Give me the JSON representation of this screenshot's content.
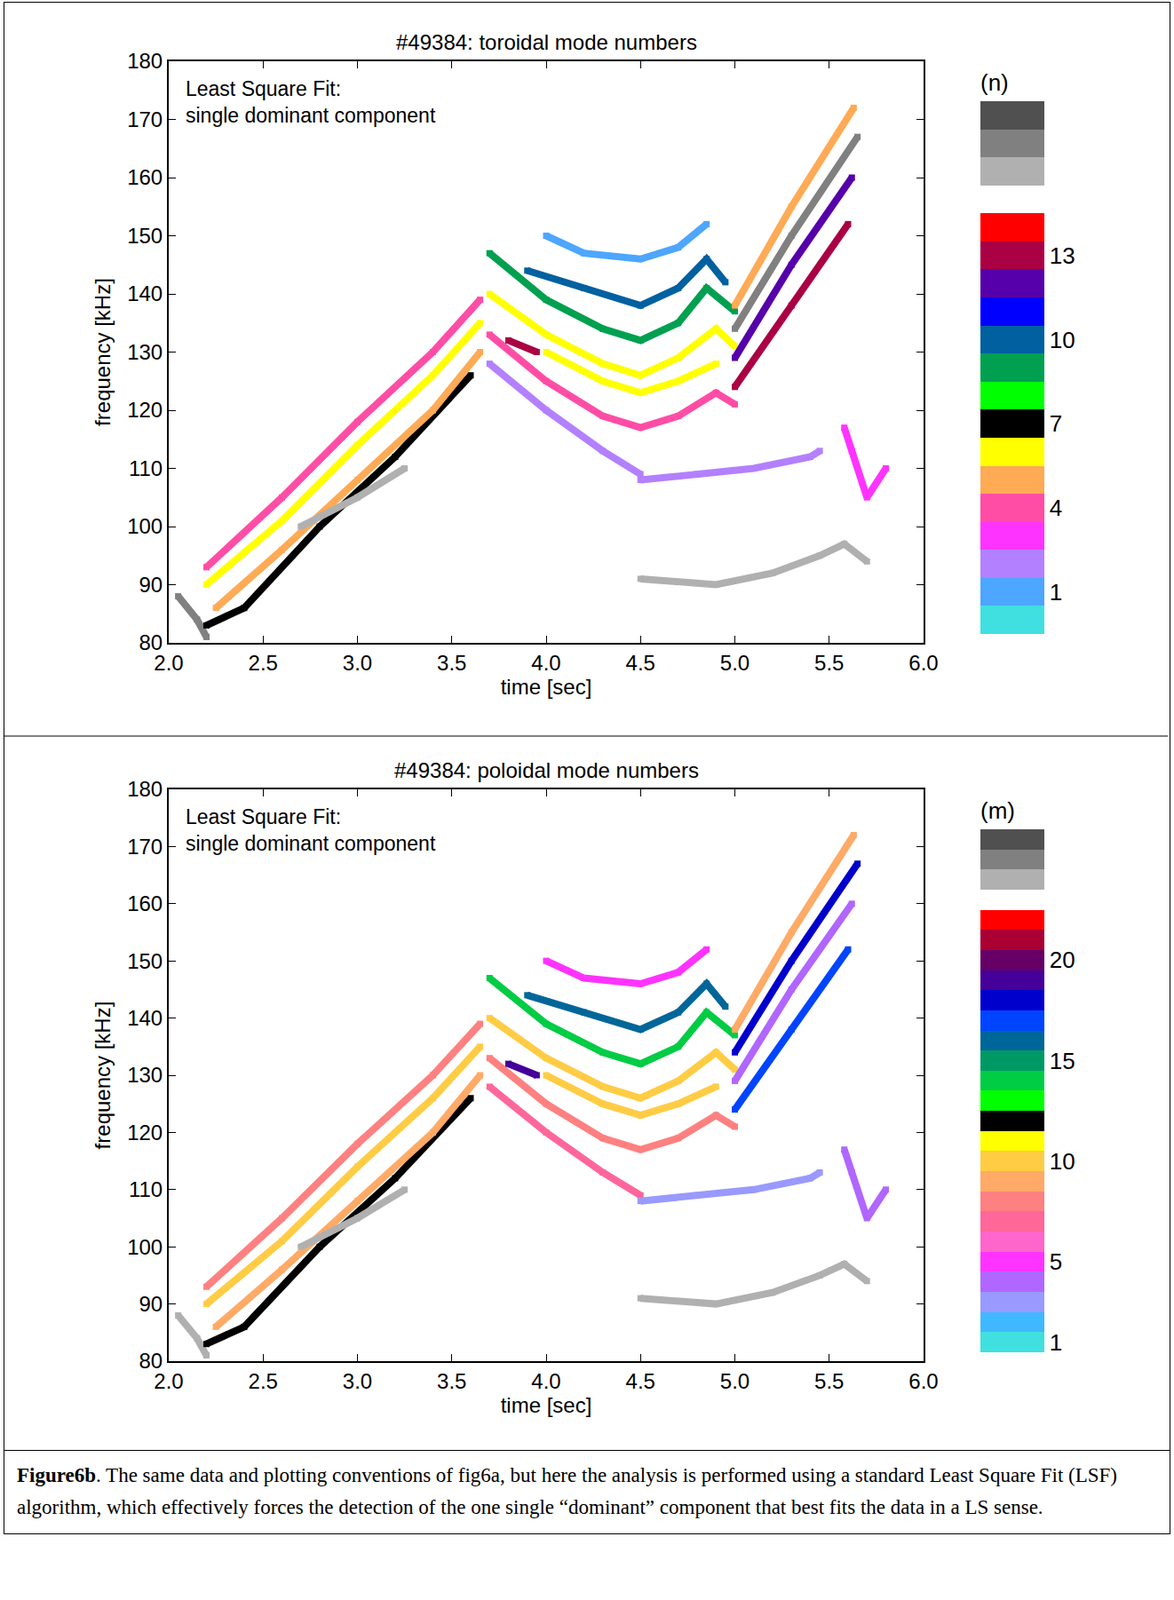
{
  "chart_data": [
    {
      "type": "line",
      "title": "#49384: toroidal mode numbers",
      "annotation": [
        "Least Square Fit:",
        "single dominant component"
      ],
      "x_label": "time [sec]",
      "y_label": "frequency [kHz]",
      "xlim": [
        2,
        6
      ],
      "xticks": [
        {
          "value": 2,
          "label": "2.0"
        },
        {
          "value": 2.5,
          "label": "2.5"
        },
        {
          "value": 3,
          "label": "3.0"
        },
        {
          "value": 3.5,
          "label": "3.5"
        },
        {
          "value": 4,
          "label": "4.0"
        },
        {
          "value": 4.5,
          "label": "4.5"
        },
        {
          "value": 5,
          "label": "5.0"
        },
        {
          "value": 5.5,
          "label": "5.5"
        },
        {
          "value": 6,
          "label": "6.0"
        }
      ],
      "ylim": [
        80,
        180
      ],
      "yticks": [
        80,
        90,
        100,
        110,
        120,
        130,
        140,
        150,
        160,
        170,
        180
      ],
      "grid": false,
      "colorbar": {
        "title": "(n)",
        "range": [
          -0.5,
          18.5
        ],
        "ticks": [
          1,
          4,
          7,
          10,
          13
        ],
        "colors": [
          "#40e0e0",
          "#4da6ff",
          "#b380ff",
          "#ff33ff",
          "#ff4da6",
          "#ffaa55",
          "#ffff00",
          "#000000",
          "#00ff00",
          "#00a050",
          "#0060a0",
          "#0000ff",
          "#5500aa",
          "#aa0044",
          "#ff0000",
          "#ffffff",
          "#b0b0b0",
          "#808080",
          "#505050"
        ]
      },
      "series": [
        {
          "mode_number": 17,
          "x": [
            2.05,
            2.15,
            2.2
          ],
          "y": [
            88,
            84,
            81
          ]
        },
        {
          "mode_number": 7,
          "x": [
            2.2,
            2.4,
            2.8,
            3.2,
            3.6
          ],
          "y": [
            83,
            86,
            100,
            112,
            126
          ]
        },
        {
          "mode_number": 5,
          "x": [
            2.25,
            2.6,
            3.0,
            3.4,
            3.65
          ],
          "y": [
            86,
            96,
            108,
            120,
            130
          ]
        },
        {
          "mode_number": 6,
          "x": [
            2.2,
            2.6,
            3.0,
            3.4,
            3.65
          ],
          "y": [
            90,
            101,
            114,
            126,
            135
          ]
        },
        {
          "mode_number": 4,
          "x": [
            2.2,
            2.6,
            3.0,
            3.4,
            3.65
          ],
          "y": [
            93,
            105,
            118,
            130,
            139
          ]
        },
        {
          "mode_number": 16,
          "x": [
            2.7,
            3.0,
            3.25
          ],
          "y": [
            100,
            105,
            110
          ]
        },
        {
          "mode_number": 1,
          "x": [
            4.0,
            4.2,
            4.5,
            4.7,
            4.85
          ],
          "y": [
            150,
            147,
            146,
            148,
            152
          ]
        },
        {
          "mode_number": 10,
          "x": [
            3.9,
            4.2,
            4.5,
            4.7,
            4.85,
            4.95
          ],
          "y": [
            144,
            141,
            138,
            141,
            146,
            142
          ]
        },
        {
          "mode_number": 9,
          "x": [
            3.7,
            4.0,
            4.3,
            4.5,
            4.7,
            4.85,
            5.0
          ],
          "y": [
            147,
            139,
            134,
            132,
            135,
            141,
            137
          ]
        },
        {
          "mode_number": 6,
          "x": [
            3.7,
            4.0,
            4.3,
            4.5,
            4.7,
            4.9,
            5.0
          ],
          "y": [
            140,
            133,
            128,
            126,
            129,
            134,
            131
          ]
        },
        {
          "mode_number": 6,
          "x": [
            4.0,
            4.3,
            4.5,
            4.7,
            4.9
          ],
          "y": [
            130,
            125,
            123,
            125,
            128
          ]
        },
        {
          "mode_number": 4,
          "x": [
            3.7,
            4.0,
            4.3,
            4.5,
            4.7,
            4.9,
            5.0
          ],
          "y": [
            133,
            125,
            119,
            117,
            119,
            123,
            121
          ]
        },
        {
          "mode_number": 2,
          "x": [
            3.7,
            4.0,
            4.3,
            4.5
          ],
          "y": [
            128,
            120,
            113,
            109
          ]
        },
        {
          "mode_number": 13,
          "x": [
            3.8,
            3.95
          ],
          "y": [
            132,
            130
          ]
        },
        {
          "mode_number": 2,
          "x": [
            4.5,
            4.8,
            5.1,
            5.4,
            5.45
          ],
          "y": [
            108,
            109,
            110,
            112,
            113
          ]
        },
        {
          "mode_number": 16,
          "x": [
            4.5,
            4.9,
            5.2,
            5.45,
            5.58,
            5.7
          ],
          "y": [
            91,
            90,
            92,
            95,
            97,
            94
          ]
        },
        {
          "mode_number": 5,
          "x": [
            5.0,
            5.3,
            5.63
          ],
          "y": [
            138,
            155,
            172
          ]
        },
        {
          "mode_number": 17,
          "x": [
            5.0,
            5.3,
            5.65
          ],
          "y": [
            134,
            150,
            167
          ]
        },
        {
          "mode_number": 12,
          "x": [
            5.0,
            5.3,
            5.62
          ],
          "y": [
            129,
            145,
            160
          ]
        },
        {
          "mode_number": 13,
          "x": [
            5.0,
            5.3,
            5.6
          ],
          "y": [
            124,
            138,
            152
          ]
        },
        {
          "mode_number": 3,
          "x": [
            5.58,
            5.62,
            5.7,
            5.8
          ],
          "y": [
            117,
            113,
            105,
            110
          ]
        }
      ]
    },
    {
      "type": "line",
      "title": "#49384: poloidal mode numbers",
      "annotation": [
        "Least Square Fit:",
        "single dominant component"
      ],
      "x_label": "time [sec]",
      "y_label": "frequency [kHz]",
      "xlim": [
        2,
        6
      ],
      "xticks": [
        {
          "value": 2,
          "label": "2.0"
        },
        {
          "value": 2.5,
          "label": "2.5"
        },
        {
          "value": 3,
          "label": "3.0"
        },
        {
          "value": 3.5,
          "label": "3.5"
        },
        {
          "value": 4,
          "label": "4.0"
        },
        {
          "value": 4.5,
          "label": "4.5"
        },
        {
          "value": 5,
          "label": "5.0"
        },
        {
          "value": 5.5,
          "label": "5.5"
        },
        {
          "value": 6,
          "label": "6.0"
        }
      ],
      "ylim": [
        80,
        180
      ],
      "yticks": [
        80,
        90,
        100,
        110,
        120,
        130,
        140,
        150,
        160,
        170,
        180
      ],
      "grid": false,
      "colorbar": {
        "title": "(m)",
        "range": [
          0.5,
          26.5
        ],
        "ticks": [
          1,
          5,
          10,
          15,
          20
        ],
        "colors": [
          "#40e0e0",
          "#40b8ff",
          "#9999ff",
          "#b066ff",
          "#ff33ff",
          "#ff66cc",
          "#ff6699",
          "#ff8080",
          "#ffaa66",
          "#ffcc44",
          "#ffff00",
          "#000000",
          "#00ff00",
          "#00cc44",
          "#009966",
          "#006699",
          "#0044ff",
          "#0000cc",
          "#440099",
          "#660066",
          "#aa0033",
          "#ff0000",
          "#ffffff",
          "#b0b0b0",
          "#808080",
          "#505050"
        ]
      },
      "series": [
        {
          "mode_number": 24,
          "x": [
            2.05,
            2.15,
            2.2
          ],
          "y": [
            88,
            84,
            81
          ]
        },
        {
          "mode_number": 12,
          "x": [
            2.2,
            2.4,
            2.8,
            3.2,
            3.6
          ],
          "y": [
            83,
            86,
            100,
            112,
            126
          ]
        },
        {
          "mode_number": 9,
          "x": [
            2.25,
            2.6,
            3.0,
            3.4,
            3.65
          ],
          "y": [
            86,
            96,
            108,
            120,
            130
          ]
        },
        {
          "mode_number": 10,
          "x": [
            2.2,
            2.6,
            3.0,
            3.4,
            3.65
          ],
          "y": [
            90,
            101,
            114,
            126,
            135
          ]
        },
        {
          "mode_number": 8,
          "x": [
            2.2,
            2.6,
            3.0,
            3.4,
            3.65
          ],
          "y": [
            93,
            105,
            118,
            130,
            139
          ]
        },
        {
          "mode_number": 24,
          "x": [
            2.7,
            3.0,
            3.25
          ],
          "y": [
            100,
            105,
            110
          ]
        },
        {
          "mode_number": 5,
          "x": [
            4.0,
            4.2,
            4.5,
            4.7,
            4.85
          ],
          "y": [
            150,
            147,
            146,
            148,
            152
          ]
        },
        {
          "mode_number": 16,
          "x": [
            3.9,
            4.2,
            4.5,
            4.7,
            4.85,
            4.95
          ],
          "y": [
            144,
            141,
            138,
            141,
            146,
            142
          ]
        },
        {
          "mode_number": 14,
          "x": [
            3.7,
            4.0,
            4.3,
            4.5,
            4.7,
            4.85,
            5.0
          ],
          "y": [
            147,
            139,
            134,
            132,
            135,
            141,
            137
          ]
        },
        {
          "mode_number": 10,
          "x": [
            3.7,
            4.0,
            4.3,
            4.5,
            4.7,
            4.9,
            5.0
          ],
          "y": [
            140,
            133,
            128,
            126,
            129,
            134,
            131
          ]
        },
        {
          "mode_number": 10,
          "x": [
            4.0,
            4.3,
            4.5,
            4.7,
            4.9
          ],
          "y": [
            130,
            125,
            123,
            125,
            128
          ]
        },
        {
          "mode_number": 8,
          "x": [
            3.7,
            4.0,
            4.3,
            4.5,
            4.7,
            4.9,
            5.0
          ],
          "y": [
            133,
            125,
            119,
            117,
            119,
            123,
            121
          ]
        },
        {
          "mode_number": 7,
          "x": [
            3.7,
            4.0,
            4.3,
            4.5
          ],
          "y": [
            128,
            120,
            113,
            109
          ]
        },
        {
          "mode_number": 19,
          "x": [
            3.8,
            3.95
          ],
          "y": [
            132,
            130
          ]
        },
        {
          "mode_number": 3,
          "x": [
            4.5,
            4.8,
            5.1,
            5.4,
            5.45
          ],
          "y": [
            108,
            109,
            110,
            112,
            113
          ]
        },
        {
          "mode_number": 24,
          "x": [
            4.5,
            4.9,
            5.2,
            5.45,
            5.58,
            5.7
          ],
          "y": [
            91,
            90,
            92,
            95,
            97,
            94
          ]
        },
        {
          "mode_number": 9,
          "x": [
            5.0,
            5.3,
            5.63
          ],
          "y": [
            138,
            155,
            172
          ]
        },
        {
          "mode_number": 18,
          "x": [
            5.0,
            5.3,
            5.65
          ],
          "y": [
            134,
            150,
            167
          ]
        },
        {
          "mode_number": 4,
          "x": [
            5.0,
            5.3,
            5.62
          ],
          "y": [
            129,
            145,
            160
          ]
        },
        {
          "mode_number": 17,
          "x": [
            5.0,
            5.3,
            5.6
          ],
          "y": [
            124,
            138,
            152
          ]
        },
        {
          "mode_number": 4,
          "x": [
            5.58,
            5.62,
            5.7,
            5.8
          ],
          "y": [
            117,
            113,
            105,
            110
          ]
        }
      ]
    }
  ],
  "caption": {
    "label": "Figure6b",
    "text": ". The same data and plotting conventions of fig6a, but here the analysis is performed using a standard Least Square Fit (LSF) algorithm, which effectively forces the detection of the one single “dominant” component that best fits the data in a LS sense."
  }
}
